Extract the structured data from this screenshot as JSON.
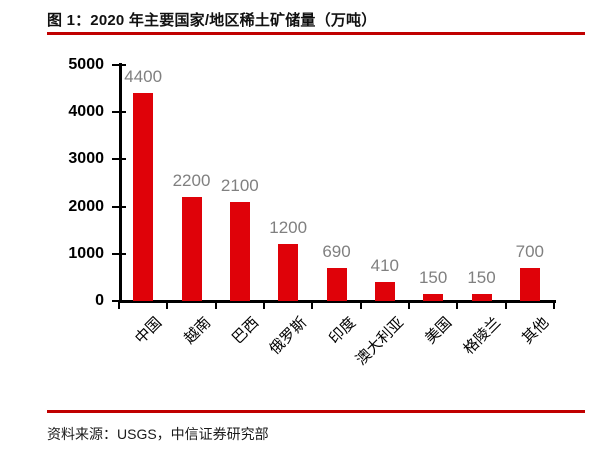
{
  "page": {
    "title": "图 1：2020 年主要国家/地区稀土矿储量（万吨）",
    "source_note": "资料来源：USGS，中信证券研究部"
  },
  "colors": {
    "bar": "#DF0209",
    "rule": "#C00000",
    "axis": "#000000",
    "data_label": "#808080",
    "ytick_label": "#000000",
    "category_label": "#000000"
  },
  "chart_data": {
    "type": "bar",
    "title": "图 1：2020 年主要国家/地区稀土矿储量（万吨）",
    "unit": "万吨",
    "categories": [
      "中国",
      "越南",
      "巴西",
      "俄罗斯",
      "印度",
      "澳大利亚",
      "美国",
      "格陵兰",
      "其他"
    ],
    "values": [
      4400,
      2200,
      2100,
      1200,
      690,
      410,
      150,
      150,
      700
    ],
    "data_labels": [
      "4400",
      "2200",
      "2100",
      "1200",
      "690",
      "410",
      "150",
      "150",
      "700"
    ],
    "ylim": [
      0,
      5000
    ],
    "yticks": [
      0,
      1000,
      2000,
      3000,
      4000,
      5000
    ],
    "xlabel": "",
    "ylabel": "",
    "grid": false,
    "legend_position": "none",
    "source": "资料来源：USGS，中信证券研究部"
  }
}
